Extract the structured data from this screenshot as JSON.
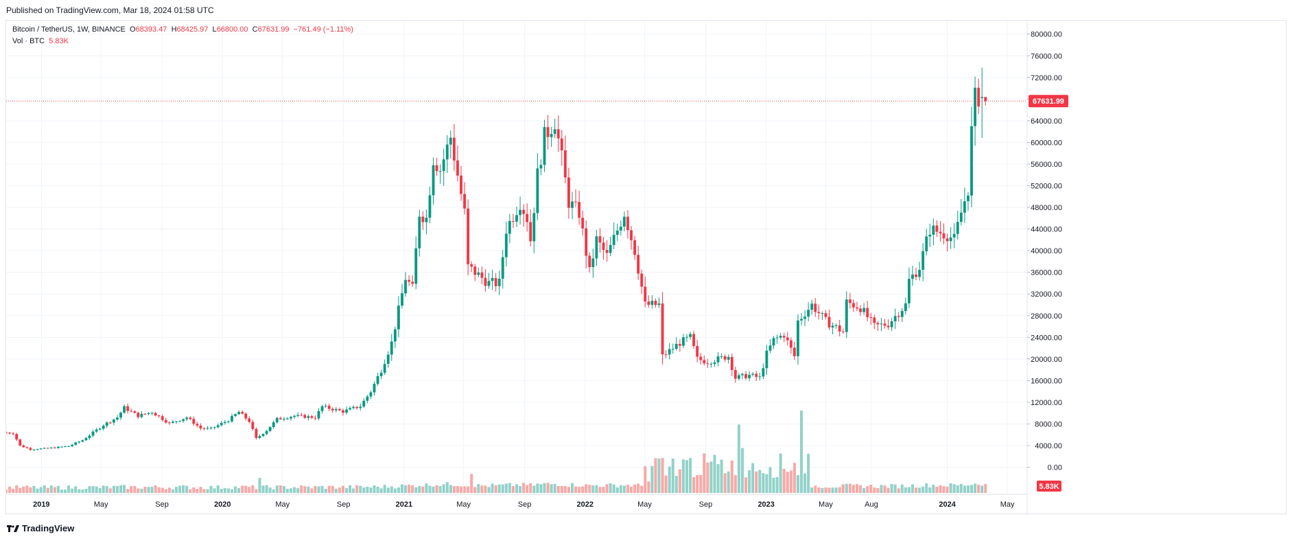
{
  "header": {
    "published": "Published on TradingView.com, Mar 18, 2024 01:58 UTC"
  },
  "legend": {
    "symbol": "Bitcoin / TetherUS, 1W, BINANCE",
    "open_label": "O",
    "open": "68393.47",
    "high_label": "H",
    "high": "68425.97",
    "low_label": "L",
    "low": "66800.00",
    "close_label": "C",
    "close": "67631.99",
    "change": "−761.49 (−1.11%)",
    "vol_label": "Vol · BTC",
    "vol_value": "5.83K"
  },
  "footer": {
    "logo_text": "TradingView"
  },
  "colors": {
    "up": "#089981",
    "down": "#f23645",
    "vol_up": "#92d2c9",
    "vol_down": "#f7a9a7",
    "grid": "#f0f3fa"
  },
  "chart_data": {
    "type": "candlestick",
    "interval": "1W",
    "price_axis": {
      "ticks": [
        0,
        4000,
        8000,
        12000,
        16000,
        20000,
        24000,
        28000,
        32000,
        36000,
        40000,
        44000,
        48000,
        52000,
        56000,
        60000,
        64000,
        68000,
        72000,
        76000,
        80000
      ],
      "tick_labels": [
        "0.00",
        "4000.00",
        "8000.00",
        "12000.00",
        "16000.00",
        "20000.00",
        "24000.00",
        "28000.00",
        "32000.00",
        "36000.00",
        "40000.00",
        "44000.00",
        "48000.00",
        "52000.00",
        "56000.00",
        "60000.00",
        "64000.00",
        "68000.00",
        "72000.00",
        "76000.00",
        "80000.00"
      ],
      "ylim": [
        -5000,
        82500
      ]
    },
    "time_axis": {
      "labels": [
        "2019",
        "May",
        "Sep",
        "2020",
        "May",
        "Sep",
        "2021",
        "May",
        "Sep",
        "2022",
        "May",
        "Sep",
        "2023",
        "May",
        "Aug",
        "2024",
        "May"
      ],
      "dates": [
        "2019-01-01",
        "2019-05-01",
        "2019-09-01",
        "2020-01-01",
        "2020-05-01",
        "2020-09-01",
        "2021-01-01",
        "2021-05-01",
        "2021-09-01",
        "2022-01-01",
        "2022-05-01",
        "2022-09-01",
        "2023-01-01",
        "2023-05-01",
        "2023-08-01",
        "2024-01-01",
        "2024-05-01"
      ],
      "xlim": [
        "2018-10-22",
        "2024-06-10"
      ]
    },
    "last_price": 67631.99,
    "last_price_label": "67631.99",
    "volume_last_label": "5.83K",
    "price_path": [
      [
        "2018-10-22",
        6400
      ],
      [
        "2018-11-12",
        6300
      ],
      [
        "2018-11-26",
        4000
      ],
      [
        "2018-12-17",
        3300
      ],
      [
        "2019-01-21",
        3500
      ],
      [
        "2019-03-04",
        3900
      ],
      [
        "2019-04-01",
        5000
      ],
      [
        "2019-05-13",
        7800
      ],
      [
        "2019-06-10",
        9200
      ],
      [
        "2019-06-24",
        11000
      ],
      [
        "2019-07-22",
        9500
      ],
      [
        "2019-08-19",
        10200
      ],
      [
        "2019-09-23",
        8100
      ],
      [
        "2019-10-28",
        9200
      ],
      [
        "2019-11-25",
        7200
      ],
      [
        "2019-12-16",
        7100
      ],
      [
        "2020-01-20",
        8700
      ],
      [
        "2020-02-10",
        10200
      ],
      [
        "2020-03-02",
        8500
      ],
      [
        "2020-03-16",
        5300
      ],
      [
        "2020-04-06",
        6800
      ],
      [
        "2020-04-27",
        8900
      ],
      [
        "2020-06-01",
        9500
      ],
      [
        "2020-07-13",
        9200
      ],
      [
        "2020-07-27",
        11200
      ],
      [
        "2020-09-07",
        10300
      ],
      [
        "2020-10-12",
        11300
      ],
      [
        "2020-11-02",
        14000
      ],
      [
        "2020-11-23",
        18000
      ],
      [
        "2020-12-14",
        23000
      ],
      [
        "2020-12-28",
        29000
      ],
      [
        "2021-01-11",
        35000
      ],
      [
        "2021-01-25",
        33000
      ],
      [
        "2021-02-08",
        47000
      ],
      [
        "2021-02-22",
        46000
      ],
      [
        "2021-03-08",
        57000
      ],
      [
        "2021-03-22",
        55000
      ],
      [
        "2021-04-12",
        61000
      ],
      [
        "2021-04-26",
        54000
      ],
      [
        "2021-05-10",
        47000
      ],
      [
        "2021-05-17",
        37000
      ],
      [
        "2021-06-14",
        35000
      ],
      [
        "2021-06-28",
        34000
      ],
      [
        "2021-07-19",
        34000
      ],
      [
        "2021-08-02",
        44000
      ],
      [
        "2021-08-30",
        49000
      ],
      [
        "2021-09-13",
        46000
      ],
      [
        "2021-09-20",
        42000
      ],
      [
        "2021-10-04",
        54000
      ],
      [
        "2021-10-18",
        61000
      ],
      [
        "2021-11-08",
        64000
      ],
      [
        "2021-11-22",
        57000
      ],
      [
        "2021-12-06",
        49000
      ],
      [
        "2021-12-27",
        47000
      ],
      [
        "2022-01-17",
        36000
      ],
      [
        "2022-01-31",
        42000
      ],
      [
        "2022-02-21",
        39000
      ],
      [
        "2022-03-28",
        47000
      ],
      [
        "2022-04-18",
        40000
      ],
      [
        "2022-05-09",
        30000
      ],
      [
        "2022-06-06",
        30000
      ],
      [
        "2022-06-13",
        20500
      ],
      [
        "2022-07-18",
        23000
      ],
      [
        "2022-08-08",
        24000
      ],
      [
        "2022-08-22",
        20000
      ],
      [
        "2022-09-12",
        19500
      ],
      [
        "2022-10-24",
        20500
      ],
      [
        "2022-11-07",
        16500
      ],
      [
        "2022-12-05",
        17000
      ],
      [
        "2022-12-26",
        16500
      ],
      [
        "2023-01-09",
        21000
      ],
      [
        "2023-01-23",
        23500
      ],
      [
        "2023-02-13",
        24500
      ],
      [
        "2023-03-06",
        20500
      ],
      [
        "2023-03-13",
        27000
      ],
      [
        "2023-04-10",
        30000
      ],
      [
        "2023-05-08",
        27000
      ],
      [
        "2023-06-12",
        25000
      ],
      [
        "2023-06-19",
        30500
      ],
      [
        "2023-07-17",
        29500
      ],
      [
        "2023-08-14",
        26000
      ],
      [
        "2023-09-11",
        26500
      ],
      [
        "2023-10-16",
        30000
      ],
      [
        "2023-10-23",
        34500
      ],
      [
        "2023-11-13",
        37000
      ],
      [
        "2023-12-04",
        44000
      ],
      [
        "2024-01-08",
        43000
      ],
      [
        "2024-01-22",
        42000
      ],
      [
        "2024-02-05",
        47000
      ],
      [
        "2024-02-19",
        51500
      ],
      [
        "2024-02-26",
        62000
      ],
      [
        "2024-03-04",
        68200
      ],
      [
        "2024-03-11",
        68393.47
      ],
      [
        "2024-03-18",
        67631.99
      ]
    ],
    "volume_events": [
      [
        "2020-03-16",
        3.0
      ],
      [
        "2021-05-17",
        3.8
      ],
      [
        "2022-05-09",
        2.3
      ],
      [
        "2022-06-13",
        3.5
      ],
      [
        "2022-11-07",
        13.7
      ],
      [
        "2022-11-14",
        9.0
      ],
      [
        "2023-03-13",
        16.5
      ],
      [
        "2023-03-20",
        3.9
      ]
    ]
  }
}
